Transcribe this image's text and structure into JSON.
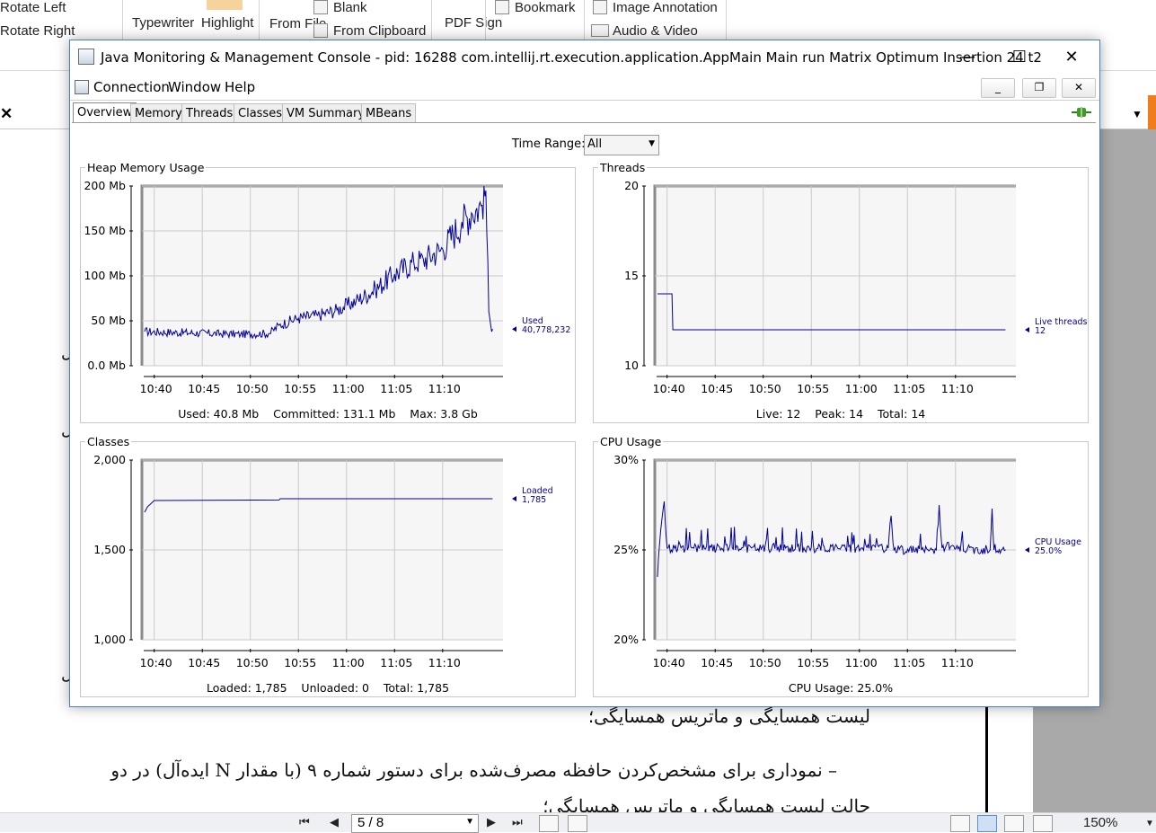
{
  "pdf_app": {
    "ribbon": {
      "rotate_left": "Rotate Left",
      "rotate_right": "Rotate Right",
      "typewriter": "Typewriter",
      "highlight": "Highlight",
      "from_file": "From File",
      "blank": "Blank",
      "from_clipboard": "From Clipboard",
      "pdf_sign": "PDF Sign",
      "bookmark": "Bookmark",
      "image_annotation": "Image Annotation",
      "audio_video": "Audio & Video"
    },
    "doc_lines": [
      "لیست همسایگی و ماتریس همسایگی؛",
      "– نموداری برای مشخص‌کردن حافظه مصرف‌شده برای دستور شماره ۹ (با مقدار N ایده‌آل)  در دو",
      "حالت لیست همسایگی و ماتریس همسایگی؛"
    ],
    "status": {
      "page_field": "5 / 8",
      "zoom": "150%"
    }
  },
  "window": {
    "title": "Java Monitoring & Management Console - pid: 16288 com.intellij.rt.execution.application.AppMain Main run Matrix Optimum Insertion 24 t2",
    "menu": [
      "Connection",
      "Window",
      "Help"
    ],
    "tabs": [
      "Overview",
      "Memory",
      "Threads",
      "Classes",
      "VM Summary",
      "MBeans"
    ],
    "selected_tab": "Overview",
    "time_range_label": "Time Range:",
    "time_range_value": "All"
  },
  "chart_data": [
    {
      "id": "heap",
      "type": "line",
      "title": "Heap Memory Usage",
      "x_ticks": [
        "10:40",
        "10:45",
        "10:50",
        "10:55",
        "11:00",
        "11:05",
        "11:10"
      ],
      "y_ticks": [
        "200 Mb",
        "150 Mb",
        "100 Mb",
        "50 Mb",
        "0.0 Mb"
      ],
      "ylim": [
        0,
        200
      ],
      "legend": [
        "Used",
        "40,778,232"
      ],
      "info": "Used: 40.8 Mb    Committed: 131.1 Mb    Max: 3.8 Gb",
      "series_color": "#000099",
      "approx_points": [
        [
          0,
          38
        ],
        [
          10,
          35
        ],
        [
          13,
          36
        ],
        [
          14,
          45
        ],
        [
          16,
          53
        ],
        [
          18,
          56
        ],
        [
          20,
          62
        ],
        [
          22,
          72
        ],
        [
          24,
          85
        ],
        [
          26,
          102
        ],
        [
          28,
          115
        ],
        [
          29,
          118
        ],
        [
          31,
          130
        ],
        [
          33,
          160
        ],
        [
          34,
          170
        ],
        [
          35,
          178
        ],
        [
          35.5,
          195
        ],
        [
          35.8,
          60
        ],
        [
          36,
          45
        ],
        [
          36.2,
          40.8
        ]
      ]
    },
    {
      "id": "threads",
      "type": "line",
      "title": "Threads",
      "x_ticks": [
        "10:40",
        "10:45",
        "10:50",
        "10:55",
        "11:00",
        "11:05",
        "11:10"
      ],
      "y_ticks": [
        "20",
        "15",
        "10"
      ],
      "ylim": [
        10,
        20
      ],
      "legend": [
        "Live threads",
        "12"
      ],
      "info": "Live: 12    Peak: 14    Total: 14",
      "series_color": "#000099",
      "approx_points": [
        [
          0,
          14
        ],
        [
          1.5,
          14
        ],
        [
          1.6,
          12
        ],
        [
          36.2,
          12
        ]
      ]
    },
    {
      "id": "classes",
      "type": "line",
      "title": "Classes",
      "x_ticks": [
        "10:40",
        "10:45",
        "10:50",
        "10:55",
        "11:00",
        "11:05",
        "11:10"
      ],
      "y_ticks": [
        "2,000",
        "1,500",
        "1,000"
      ],
      "ylim": [
        1000,
        2000
      ],
      "legend": [
        "Loaded",
        "1,785"
      ],
      "info": "Loaded: 1,785    Unloaded: 0    Total: 1,785",
      "series_color": "#000099",
      "approx_points": [
        [
          0,
          1710
        ],
        [
          0.3,
          1740
        ],
        [
          1,
          1775
        ],
        [
          14,
          1778
        ],
        [
          14.1,
          1785
        ],
        [
          36.2,
          1785
        ]
      ]
    },
    {
      "id": "cpu",
      "type": "line",
      "title": "CPU Usage",
      "x_ticks": [
        "10:40",
        "10:45",
        "10:50",
        "10:55",
        "11:00",
        "11:05",
        "11:10"
      ],
      "y_ticks": [
        "30%",
        "25%",
        "20%"
      ],
      "ylim": [
        20,
        30
      ],
      "legend": [
        "CPU Usage",
        "25.0%"
      ],
      "info": "CPU Usage: 25.0%",
      "series_color": "#000099",
      "approx_points": [
        [
          0,
          23.5
        ],
        [
          0.2,
          25.2
        ],
        [
          0.7,
          27.7
        ],
        [
          1,
          25.1
        ],
        [
          24,
          25.1
        ],
        [
          24.3,
          26.9
        ],
        [
          24.6,
          25
        ],
        [
          29,
          25
        ],
        [
          29.3,
          27.5
        ],
        [
          29.6,
          25.1
        ],
        [
          34.6,
          25
        ],
        [
          34.8,
          27.3
        ],
        [
          35,
          25
        ],
        [
          36.2,
          25
        ]
      ]
    }
  ]
}
